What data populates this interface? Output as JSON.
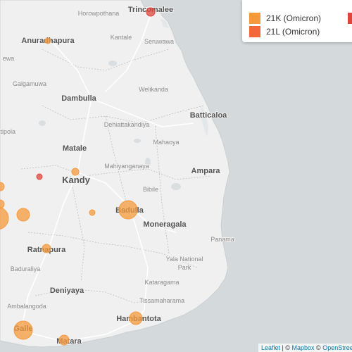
{
  "legend": {
    "items": [
      {
        "label": "21K (Omicron)",
        "color": "#f59a3c"
      },
      {
        "label": "21L (Omicron)",
        "color": "#f2683a"
      }
    ],
    "extra_color": "#e0453c"
  },
  "attribution": {
    "leaflet": "Leaflet",
    "separator": " | © ",
    "mapbox": "Mapbox",
    "osm_prefix": " © ",
    "osm": "OpenStreetMap"
  },
  "places": [
    {
      "id": "trincomalee",
      "name": "Trincomalee",
      "size": 11,
      "cls": "major"
    },
    {
      "id": "horowpothana",
      "name": "Horowpothana",
      "size": 9,
      "cls": "minor"
    },
    {
      "id": "kantale",
      "name": "Kantale",
      "size": 9,
      "cls": "minor"
    },
    {
      "id": "seruwawa",
      "name": "Seruwawa",
      "size": 9,
      "cls": "minor"
    },
    {
      "id": "anuradhapura",
      "name": "Anuradhapura",
      "size": 11,
      "cls": "major"
    },
    {
      "id": "ihala-wewa",
      "name": "ewa",
      "size": 9,
      "cls": "minor"
    },
    {
      "id": "galgamuwa",
      "name": "Galgamuwa",
      "size": 9,
      "cls": "minor"
    },
    {
      "id": "dambulla",
      "name": "Dambulla",
      "size": 11,
      "cls": "major"
    },
    {
      "id": "welikanda",
      "name": "Welikanda",
      "size": 9,
      "cls": "minor"
    },
    {
      "id": "dehiattakandiya",
      "name": "Dehiattakandiya",
      "size": 9,
      "cls": "minor"
    },
    {
      "id": "batticaloa",
      "name": "Batticaloa",
      "size": 11,
      "cls": "major"
    },
    {
      "id": "kuliyapitiya",
      "name": "ttipola",
      "size": 9,
      "cls": "minor"
    },
    {
      "id": "mahaoya",
      "name": "Mahaoya",
      "size": 9,
      "cls": "minor"
    },
    {
      "id": "matale",
      "name": "Matale",
      "size": 11,
      "cls": "major"
    },
    {
      "id": "mahiyanganaya",
      "name": "Mahiyanganaya",
      "size": 9,
      "cls": "minor"
    },
    {
      "id": "ampara",
      "name": "Ampara",
      "size": 11,
      "cls": "major"
    },
    {
      "id": "kandy",
      "name": "Kandy",
      "size": 13,
      "cls": "major"
    },
    {
      "id": "bibile",
      "name": "Bibile",
      "size": 9,
      "cls": "minor"
    },
    {
      "id": "badulla",
      "name": "Badulla",
      "size": 11,
      "cls": "major"
    },
    {
      "id": "moneragala",
      "name": "Moneragala",
      "size": 11,
      "cls": "major"
    },
    {
      "id": "panama",
      "name": "Panama",
      "size": 9,
      "cls": "minor"
    },
    {
      "id": "ratnapura",
      "name": "Ratnapura",
      "size": 11,
      "cls": "major"
    },
    {
      "id": "yala",
      "name": "Yala National",
      "size": 9,
      "cls": "minor"
    },
    {
      "id": "yala2",
      "name": "Park",
      "size": 9,
      "cls": "minor"
    },
    {
      "id": "baduraliya",
      "name": "Baduraliya",
      "size": 9,
      "cls": "minor"
    },
    {
      "id": "kataragama",
      "name": "Kataragama",
      "size": 9,
      "cls": "minor"
    },
    {
      "id": "deniyaya",
      "name": "Deniyaya",
      "size": 11,
      "cls": "major"
    },
    {
      "id": "ranna",
      "name": "Tissamaharama",
      "size": 9,
      "cls": "minor"
    },
    {
      "id": "ahangama",
      "name": "Ambalangoda",
      "size": 9,
      "cls": "minor"
    },
    {
      "id": "hambantota",
      "name": "Hambantota",
      "size": 11,
      "cls": "major"
    },
    {
      "id": "galle",
      "name": "Galle",
      "size": 11,
      "cls": "major"
    },
    {
      "id": "matara",
      "name": "Matara",
      "size": 11,
      "cls": "major"
    }
  ],
  "markers": [
    {
      "id": "trincomalee",
      "clade": "21L (Omicron)",
      "color": "#e0453c",
      "r": 6
    },
    {
      "id": "anuradhapura",
      "clade": "21K (Omicron)",
      "color": "#f59a3c",
      "r": 4
    },
    {
      "id": "kandy",
      "clade": "21K (Omicron)",
      "color": "#f59a3c",
      "r": 5
    },
    {
      "id": "kegalle",
      "clade": "21L (Omicron)",
      "color": "#e0453c",
      "r": 4
    },
    {
      "id": "nuwara",
      "clade": "21K (Omicron)",
      "color": "#f59a3c",
      "r": 4
    },
    {
      "id": "badulla",
      "clade": "21K (Omicron)",
      "color": "#f59a3c",
      "r": 13
    },
    {
      "id": "west1",
      "clade": "21K (Omicron)",
      "color": "#f59a3c",
      "r": 9
    },
    {
      "id": "west2",
      "clade": "21K (Omicron)",
      "color": "#f59a3c",
      "r": 6
    },
    {
      "id": "west3",
      "clade": "21K (Omicron)",
      "color": "#f59a3c",
      "r": 16
    },
    {
      "id": "west4",
      "clade": "21K (Omicron)",
      "color": "#f59a3c",
      "r": 6
    },
    {
      "id": "ratnapura",
      "clade": "21K (Omicron)",
      "color": "#f59a3c",
      "r": 6
    },
    {
      "id": "galle",
      "clade": "21K (Omicron)",
      "color": "#f59a3c",
      "r": 13
    },
    {
      "id": "matara",
      "clade": "21K (Omicron)",
      "color": "#f59a3c",
      "r": 7
    },
    {
      "id": "hambantota",
      "clade": "21K (Omicron)",
      "color": "#f59a3c",
      "r": 9
    }
  ]
}
